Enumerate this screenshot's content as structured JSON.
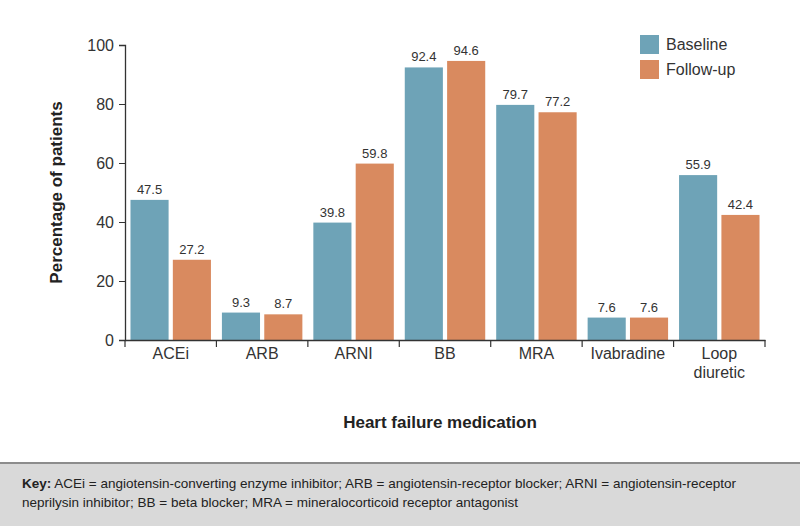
{
  "chart_data": {
    "type": "bar",
    "categories": [
      "ACEi",
      "ARB",
      "ARNI",
      "BB",
      "MRA",
      "Ivabradine",
      "Loop diuretic"
    ],
    "series": [
      {
        "name": "Baseline",
        "color": "#6ea3b7",
        "values": [
          47.5,
          9.3,
          39.8,
          92.4,
          79.7,
          7.6,
          55.9
        ]
      },
      {
        "name": "Follow-up",
        "color": "#d98a5f",
        "values": [
          27.2,
          8.7,
          59.8,
          94.6,
          77.2,
          7.6,
          42.4
        ]
      }
    ],
    "x_label": "Heart failure medication",
    "y_label": "Percentage of patients",
    "ylim": [
      0,
      100
    ],
    "yticks": [
      0,
      20,
      40,
      60,
      80,
      100
    ],
    "grid": false,
    "legend": "top-right",
    "data_labels": true,
    "annotations": [
      "Key:",
      "ACEi = angiotensin-converting enzyme inhibitor; ARB = angiotensin-receptor blocker; ARNI = angiotensin-receptor neprilysin inhibitor; BB = beta blocker; MRA = mineralocorticoid receptor antagonist"
    ]
  }
}
